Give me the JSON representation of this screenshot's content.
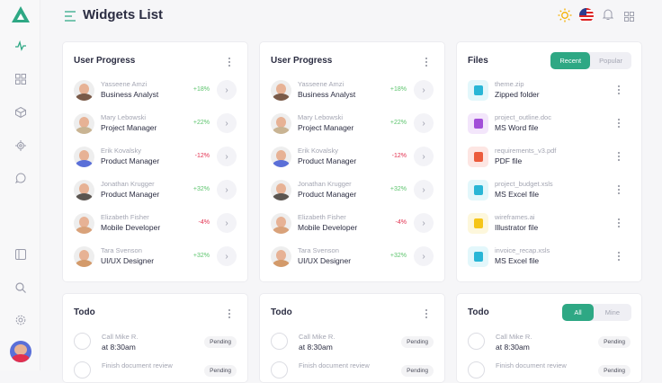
{
  "header": {
    "title": "Widgets List"
  },
  "colors": {
    "accent": "#2ea884",
    "positive": "#5cc46d",
    "negative": "#e2304f"
  },
  "sidebar": {
    "icons": [
      "logo-icon",
      "activity-icon",
      "grid-icon",
      "box-icon",
      "chip-icon",
      "chat-icon",
      "panel-icon",
      "search-icon",
      "settings-icon",
      "avatar"
    ]
  },
  "progress": {
    "title": "User Progress",
    "users": [
      {
        "name": "Yasseene Amzi",
        "role": "Business Analyst",
        "change": "+18%",
        "positive": true,
        "color": "#7a5a48"
      },
      {
        "name": "Mary Lebowski",
        "role": "Project Manager",
        "change": "+22%",
        "positive": true,
        "color": "#c9b493"
      },
      {
        "name": "Erik Kovalsky",
        "role": "Product Manager",
        "change": "-12%",
        "positive": false,
        "color": "#5a6fd8"
      },
      {
        "name": "Jonathan Krugger",
        "role": "Product Manager",
        "change": "+32%",
        "positive": true,
        "color": "#5b5550"
      },
      {
        "name": "Elizabeth Fisher",
        "role": "Mobile Developer",
        "change": "-4%",
        "positive": false,
        "color": "#d9a27a"
      },
      {
        "name": "Tara Svenson",
        "role": "UI/UX Designer",
        "change": "+32%",
        "positive": true,
        "color": "#d39a6a"
      }
    ]
  },
  "files": {
    "title": "Files",
    "tabs": [
      "Recent",
      "Popular"
    ],
    "items": [
      {
        "name": "theme.zip",
        "type": "Zipped folder",
        "bg": "#e3f7fb",
        "fg": "#29b6d6",
        "tag": "ZIP"
      },
      {
        "name": "project_outline.doc",
        "type": "MS Word file",
        "bg": "#f3e6fb",
        "fg": "#a24fd8",
        "tag": "DOC"
      },
      {
        "name": "requirements_v3.pdf",
        "type": "PDF file",
        "bg": "#fde6e3",
        "fg": "#ec5b3c",
        "tag": "PDF"
      },
      {
        "name": "project_budget.xsls",
        "type": "MS Excel file",
        "bg": "#e3f7fb",
        "fg": "#29b6d6",
        "tag": "XLS"
      },
      {
        "name": "wireframes.ai",
        "type": "Illustrator file",
        "bg": "#fdf7dc",
        "fg": "#f5c518",
        "tag": "AI"
      },
      {
        "name": "invoice_recap.xsls",
        "type": "MS Excel file",
        "bg": "#e3f7fb",
        "fg": "#29b6d6",
        "tag": "XLS"
      }
    ]
  },
  "todo": {
    "title": "Todo",
    "tabs": [
      "All",
      "Mine"
    ],
    "items": [
      {
        "title": "Call Mike R.",
        "time": "at 8:30am",
        "status": "Pending"
      },
      {
        "title": "Finish document review",
        "time": "",
        "status": "Pending"
      }
    ]
  }
}
